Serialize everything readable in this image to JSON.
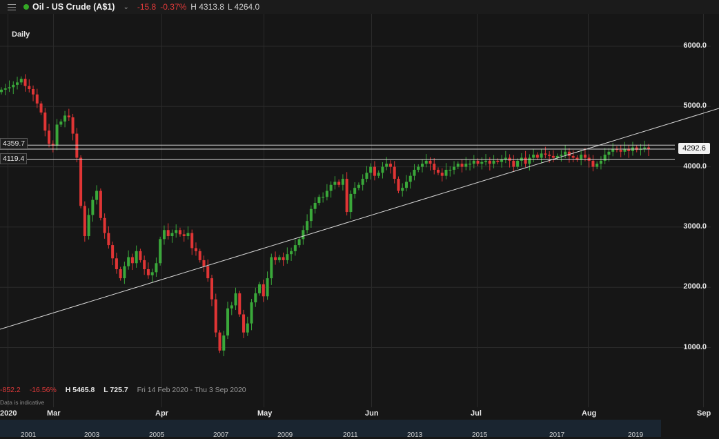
{
  "header": {
    "menu_icon": "hamburger-menu-icon",
    "status_color": "#34a825",
    "title": "Oil - US Crude (A$1)",
    "change": "-15.8",
    "change_percent": "-0.37%",
    "high": "H 4313.8",
    "low": "L 4264.0"
  },
  "chart": {
    "interval": "Daily",
    "current_price": "4292.6",
    "level_upper": "4359.7",
    "level_lower": "4119.4",
    "period_change": "-852.2",
    "period_change_percent": "-16.56%",
    "period_high": "H 5465.8",
    "period_low": "L 725.7",
    "date_range": "Fri 14 Feb 2020 - Thu 3 Sep 2020",
    "disclaimer": "Data is indicative",
    "navigator_years": [
      "2001",
      "2003",
      "2005",
      "2007",
      "2009",
      "2011",
      "2013",
      "2015",
      "2017",
      "2019"
    ],
    "colors": {
      "up": "#3aa83a",
      "down": "#e03535",
      "background": "#161616",
      "grid": "#2a2a2a",
      "line": "#d8d8d8"
    }
  },
  "chart_data": {
    "type": "candlestick",
    "title": "Oil - US Crude (A$1)",
    "x_tick_labels": [
      "2020",
      "Mar",
      "Apr",
      "May",
      "Jun",
      "Jul",
      "Aug",
      "Sep"
    ],
    "y_tick_labels": [
      "1000.0",
      "2000.0",
      "3000.0",
      "4000.0",
      "5000.0",
      "6000.0"
    ],
    "x_range": [
      "2020-02-14",
      "2020-09-03"
    ],
    "ylim": [
      300,
      6600
    ],
    "close": [
      5280,
      5300,
      5320,
      5360,
      5400,
      5460,
      5340,
      5290,
      5200,
      5050,
      4900,
      4600,
      4380,
      4350,
      4700,
      4750,
      4850,
      4820,
      4550,
      4150,
      3350,
      2850,
      3200,
      3450,
      3600,
      3150,
      2900,
      2700,
      2480,
      2300,
      2150,
      2350,
      2500,
      2400,
      2600,
      2450,
      2300,
      2200,
      2250,
      2400,
      2800,
      2950,
      2850,
      2900,
      2950,
      2880,
      2850,
      2900,
      2650,
      2600,
      2450,
      2350,
      2150,
      1800,
      1250,
      950,
      1200,
      1650,
      1700,
      1900,
      1550,
      1250,
      1400,
      1750,
      1900,
      2050,
      1850,
      2150,
      2500,
      2450,
      2500,
      2450,
      2550,
      2600,
      2700,
      2800,
      2950,
      3100,
      3300,
      3400,
      3500,
      3500,
      3600,
      3700,
      3750,
      3700,
      3800,
      3250,
      3550,
      3650,
      3700,
      3800,
      3900,
      4000,
      3850,
      3900,
      4000,
      4050,
      4000,
      3800,
      3600,
      3650,
      3750,
      3850,
      3950,
      4000,
      4050,
      4100,
      4050,
      3950,
      3900,
      3850,
      3950,
      3950,
      4000,
      4050,
      4000,
      4050,
      4050,
      4100,
      4050,
      4080,
      4100,
      4050,
      4100,
      4080,
      4120,
      4150,
      4100,
      4000,
      4100,
      4150,
      4050,
      4150,
      4200,
      4150,
      4220,
      4200,
      4180,
      4150,
      4180,
      4200,
      4250,
      4180,
      4150,
      4120,
      4200,
      4150,
      4100,
      4000,
      4050,
      4100,
      4200,
      4250,
      4300,
      4280,
      4250,
      4300,
      4260,
      4320,
      4280,
      4300,
      4320,
      4290
    ]
  }
}
